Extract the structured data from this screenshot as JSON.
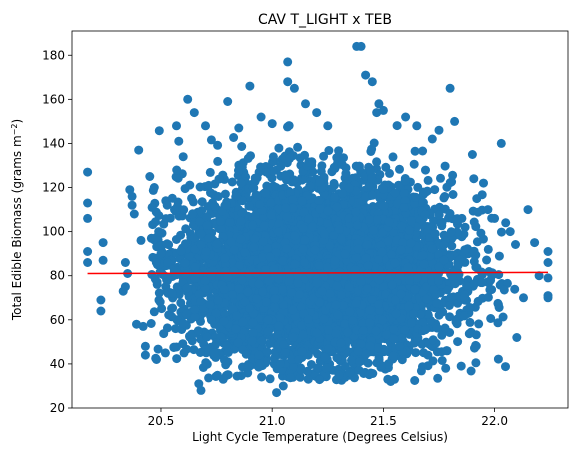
{
  "chart_data": {
    "type": "scatter",
    "title": "CAV T_LIGHT x TEB",
    "xlabel": "Light Cycle Temperature (Degrees Celsius)",
    "ylabel_main": "Total Edible Biomass (grams m",
    "ylabel_sup": "−2",
    "ylabel_tail": ")",
    "xlim": [
      20.1,
      22.33
    ],
    "ylim": [
      20,
      191
    ],
    "xticks": [
      20.5,
      21.0,
      21.5,
      22.0
    ],
    "xtick_labels": [
      "20.5",
      "21.0",
      "21.5",
      "22.0"
    ],
    "yticks": [
      20,
      40,
      60,
      80,
      100,
      120,
      140,
      160,
      180
    ],
    "ytick_labels": [
      "20",
      "40",
      "60",
      "80",
      "100",
      "120",
      "140",
      "160",
      "180"
    ],
    "series": [
      {
        "marker": "circle",
        "color": "#1f77b4",
        "points": [
          [
            20.17,
            127
          ],
          [
            20.17,
            113
          ],
          [
            20.17,
            106
          ],
          [
            20.17,
            91
          ],
          [
            20.17,
            86
          ],
          [
            20.23,
            69
          ],
          [
            20.23,
            64
          ],
          [
            20.24,
            95
          ],
          [
            20.24,
            87
          ],
          [
            20.33,
            73
          ],
          [
            20.34,
            75
          ],
          [
            20.34,
            86
          ],
          [
            20.35,
            81
          ],
          [
            20.36,
            119
          ],
          [
            20.37,
            112
          ],
          [
            20.37,
            116
          ],
          [
            20.38,
            108
          ],
          [
            20.39,
            58
          ],
          [
            20.4,
            137
          ],
          [
            20.41,
            96
          ],
          [
            20.42,
            57
          ],
          [
            20.43,
            48
          ],
          [
            20.43,
            44
          ],
          [
            20.45,
            125
          ],
          [
            20.46,
            111
          ],
          [
            20.47,
            120
          ],
          [
            20.48,
            42
          ],
          [
            20.49,
            100
          ],
          [
            20.5,
            90
          ],
          [
            20.52,
            45
          ],
          [
            20.53,
            86
          ],
          [
            20.55,
            72
          ],
          [
            20.57,
            148
          ],
          [
            20.58,
            141
          ],
          [
            20.6,
            134
          ],
          [
            20.62,
            160
          ],
          [
            20.65,
            154
          ],
          [
            20.67,
            31
          ],
          [
            20.68,
            28
          ],
          [
            20.7,
            148
          ],
          [
            20.74,
            45
          ],
          [
            20.78,
            33
          ],
          [
            20.8,
            159
          ],
          [
            20.85,
            147
          ],
          [
            20.9,
            166
          ],
          [
            20.95,
            152
          ],
          [
            21.0,
            149
          ],
          [
            21.02,
            27
          ],
          [
            21.05,
            30
          ],
          [
            21.07,
            177
          ],
          [
            21.07,
            168
          ],
          [
            21.1,
            165
          ],
          [
            21.12,
            42
          ],
          [
            21.15,
            158
          ],
          [
            21.2,
            154
          ],
          [
            21.25,
            148
          ],
          [
            21.3,
            35
          ],
          [
            21.35,
            36
          ],
          [
            21.38,
            184
          ],
          [
            21.4,
            184
          ],
          [
            21.42,
            171
          ],
          [
            21.45,
            168
          ],
          [
            21.47,
            154
          ],
          [
            21.48,
            158
          ],
          [
            21.5,
            155
          ],
          [
            21.52,
            33
          ],
          [
            21.55,
            33
          ],
          [
            21.6,
            152
          ],
          [
            21.65,
            148
          ],
          [
            21.7,
            44
          ],
          [
            21.72,
            142
          ],
          [
            21.75,
            146
          ],
          [
            21.78,
            38
          ],
          [
            21.8,
            165
          ],
          [
            21.82,
            150
          ],
          [
            21.85,
            39
          ],
          [
            21.9,
            135
          ],
          [
            21.92,
            115
          ],
          [
            21.95,
            122
          ],
          [
            21.97,
            110
          ],
          [
            22.0,
            106
          ],
          [
            22.03,
            140
          ],
          [
            22.05,
            104
          ],
          [
            22.07,
            100
          ],
          [
            22.1,
            52
          ],
          [
            22.13,
            70
          ],
          [
            22.15,
            110
          ],
          [
            22.18,
            95
          ],
          [
            22.2,
            80
          ],
          [
            22.24,
            91
          ],
          [
            22.24,
            86
          ],
          [
            22.24,
            79
          ],
          [
            22.24,
            71
          ],
          [
            22.24,
            70
          ]
        ]
      }
    ],
    "regression_line": {
      "color": "#ff0000",
      "points": [
        [
          20.17,
          81.0
        ],
        [
          22.24,
          81.5
        ]
      ]
    },
    "cloud": {
      "count": 6500,
      "x_mean": 21.2,
      "x_sd": 0.3,
      "y_mean": 82,
      "y_sd": 20,
      "x_range": [
        20.45,
        22.12
      ],
      "y_range": [
        32,
        152
      ]
    }
  }
}
